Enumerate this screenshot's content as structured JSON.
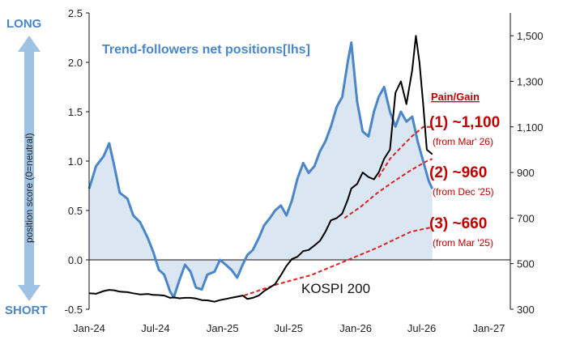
{
  "chart_data": {
    "type": "line",
    "left_axis": {
      "min": -0.5,
      "max": 2.5,
      "ticks": [
        "-0.5",
        "0.0",
        "0.5",
        "1.0",
        "1.5",
        "2.0",
        "2.5"
      ],
      "tick_values": [
        -0.5,
        0,
        0.5,
        1,
        1.5,
        2,
        2.5
      ]
    },
    "right_axis": {
      "min": 300,
      "max": 1600,
      "ticks": [
        "300",
        "500",
        "700",
        "900",
        "1,100",
        "1,300",
        "1,500"
      ],
      "tick_values": [
        300,
        500,
        700,
        900,
        1100,
        1300,
        1500
      ]
    },
    "x_axis": {
      "ticks": [
        "Jan-24",
        "Jul-24",
        "Jan-25",
        "Jul-25",
        "Jan-26",
        "Jul-26",
        "Jan-27"
      ],
      "tick_dates": [
        "2024-01",
        "2024-07",
        "2025-01",
        "2025-07",
        "2026-01",
        "2026-07",
        "2027-01"
      ]
    },
    "y_label_left": "position score (0=neutral)",
    "label_long": "LONG",
    "label_short": "SHORT",
    "legend_trend": "Trend-followers net positions[lhs]",
    "legend_kospi": "KOSPI 200",
    "annotation_title": "Pain/Gain",
    "annotations": [
      {
        "label": "(1) ~1,100",
        "note": "(from Mar' 26)"
      },
      {
        "label": "(2) ~960",
        "note": "(from Dec '25)"
      },
      {
        "label": "(3) ~660",
        "note": "(from Mar '25)"
      }
    ],
    "series": [
      {
        "name": "Trend-followers net positions[lhs]",
        "axis": "left",
        "color": "#4a86c8",
        "fill": "#dbe6f3",
        "points": [
          [
            "2024-01-01",
            0.72
          ],
          [
            "2024-01-20",
            0.95
          ],
          [
            "2024-02-10",
            1.05
          ],
          [
            "2024-02-25",
            1.18
          ],
          [
            "2024-03-10",
            0.95
          ],
          [
            "2024-03-25",
            0.68
          ],
          [
            "2024-04-15",
            0.62
          ],
          [
            "2024-05-01",
            0.45
          ],
          [
            "2024-05-20",
            0.38
          ],
          [
            "2024-06-10",
            0.22
          ],
          [
            "2024-06-25",
            0.08
          ],
          [
            "2024-07-10",
            -0.1
          ],
          [
            "2024-07-25",
            -0.15
          ],
          [
            "2024-08-10",
            -0.32
          ],
          [
            "2024-08-20",
            -0.38
          ],
          [
            "2024-09-05",
            -0.2
          ],
          [
            "2024-09-20",
            -0.05
          ],
          [
            "2024-10-05",
            -0.12
          ],
          [
            "2024-10-20",
            -0.28
          ],
          [
            "2024-11-05",
            -0.3
          ],
          [
            "2024-11-20",
            -0.15
          ],
          [
            "2024-12-10",
            -0.12
          ],
          [
            "2024-12-25",
            0.0
          ],
          [
            "2025-01-10",
            -0.05
          ],
          [
            "2025-01-25",
            -0.1
          ],
          [
            "2025-02-10",
            -0.18
          ],
          [
            "2025-02-25",
            -0.05
          ],
          [
            "2025-03-10",
            0.05
          ],
          [
            "2025-03-25",
            0.1
          ],
          [
            "2025-04-10",
            0.22
          ],
          [
            "2025-04-25",
            0.35
          ],
          [
            "2025-05-10",
            0.42
          ],
          [
            "2025-05-25",
            0.5
          ],
          [
            "2025-06-10",
            0.55
          ],
          [
            "2025-06-25",
            0.45
          ],
          [
            "2025-07-10",
            0.6
          ],
          [
            "2025-07-25",
            0.82
          ],
          [
            "2025-08-10",
            0.98
          ],
          [
            "2025-08-25",
            0.88
          ],
          [
            "2025-09-10",
            0.95
          ],
          [
            "2025-09-25",
            1.1
          ],
          [
            "2025-10-10",
            1.2
          ],
          [
            "2025-10-25",
            1.35
          ],
          [
            "2025-11-10",
            1.55
          ],
          [
            "2025-11-25",
            1.65
          ],
          [
            "2025-12-10",
            2.0
          ],
          [
            "2025-12-20",
            2.2
          ],
          [
            "2026-01-05",
            1.6
          ],
          [
            "2026-01-20",
            1.3
          ],
          [
            "2026-02-05",
            1.25
          ],
          [
            "2026-02-20",
            1.5
          ],
          [
            "2026-03-05",
            1.65
          ],
          [
            "2026-03-20",
            1.75
          ],
          [
            "2026-04-05",
            1.5
          ],
          [
            "2026-04-20",
            1.35
          ],
          [
            "2026-05-05",
            1.5
          ],
          [
            "2026-05-20",
            1.4
          ],
          [
            "2026-06-05",
            1.45
          ],
          [
            "2026-06-20",
            1.2
          ],
          [
            "2026-07-05",
            1.0
          ],
          [
            "2026-07-20",
            0.8
          ],
          [
            "2026-07-30",
            0.72
          ]
        ]
      },
      {
        "name": "KOSPI 200",
        "axis": "right",
        "color": "#000000",
        "points": [
          [
            "2024-01-01",
            370
          ],
          [
            "2024-01-20",
            368
          ],
          [
            "2024-02-10",
            380
          ],
          [
            "2024-02-25",
            385
          ],
          [
            "2024-03-10",
            383
          ],
          [
            "2024-03-25",
            377
          ],
          [
            "2024-04-15",
            375
          ],
          [
            "2024-05-01",
            370
          ],
          [
            "2024-05-20",
            365
          ],
          [
            "2024-06-10",
            367
          ],
          [
            "2024-06-25",
            363
          ],
          [
            "2024-07-10",
            362
          ],
          [
            "2024-07-25",
            360
          ],
          [
            "2024-08-10",
            350
          ],
          [
            "2024-08-20",
            352
          ],
          [
            "2024-09-05",
            348
          ],
          [
            "2024-09-20",
            350
          ],
          [
            "2024-10-05",
            350
          ],
          [
            "2024-10-20",
            347
          ],
          [
            "2024-11-05",
            340
          ],
          [
            "2024-11-20",
            339
          ],
          [
            "2024-12-10",
            333
          ],
          [
            "2024-12-25",
            340
          ],
          [
            "2025-01-10",
            345
          ],
          [
            "2025-01-25",
            350
          ],
          [
            "2025-02-10",
            355
          ],
          [
            "2025-02-25",
            360
          ],
          [
            "2025-03-10",
            345
          ],
          [
            "2025-03-25",
            350
          ],
          [
            "2025-04-10",
            360
          ],
          [
            "2025-04-25",
            380
          ],
          [
            "2025-05-10",
            395
          ],
          [
            "2025-05-25",
            410
          ],
          [
            "2025-06-10",
            450
          ],
          [
            "2025-06-25",
            490
          ],
          [
            "2025-07-10",
            520
          ],
          [
            "2025-07-25",
            530
          ],
          [
            "2025-08-10",
            555
          ],
          [
            "2025-08-25",
            560
          ],
          [
            "2025-09-10",
            580
          ],
          [
            "2025-09-25",
            600
          ],
          [
            "2025-10-10",
            640
          ],
          [
            "2025-10-25",
            690
          ],
          [
            "2025-11-10",
            700
          ],
          [
            "2025-11-25",
            720
          ],
          [
            "2025-12-10",
            780
          ],
          [
            "2025-12-20",
            830
          ],
          [
            "2026-01-05",
            850
          ],
          [
            "2026-01-20",
            900
          ],
          [
            "2026-02-05",
            880
          ],
          [
            "2026-02-20",
            870
          ],
          [
            "2026-03-05",
            900
          ],
          [
            "2026-03-20",
            960
          ],
          [
            "2026-04-05",
            1000
          ],
          [
            "2026-04-20",
            1250
          ],
          [
            "2026-05-05",
            1300
          ],
          [
            "2026-05-20",
            1200
          ],
          [
            "2026-06-05",
            1350
          ],
          [
            "2026-06-15",
            1500
          ],
          [
            "2026-06-25",
            1380
          ],
          [
            "2026-07-05",
            1200
          ],
          [
            "2026-07-15",
            1000
          ],
          [
            "2026-07-30",
            980
          ]
        ]
      },
      {
        "name": "(1) ~1,100",
        "axis": "right",
        "color": "#e02020",
        "dashed": true,
        "points": [
          [
            "2026-03-05",
            880
          ],
          [
            "2026-04-05",
            960
          ],
          [
            "2026-05-05",
            1010
          ],
          [
            "2026-06-05",
            1060
          ],
          [
            "2026-07-05",
            1100
          ],
          [
            "2026-07-30",
            1100
          ]
        ]
      },
      {
        "name": "(2) ~960",
        "axis": "right",
        "color": "#e02020",
        "dashed": true,
        "points": [
          [
            "2025-12-01",
            700
          ],
          [
            "2026-01-15",
            750
          ],
          [
            "2026-03-01",
            810
          ],
          [
            "2026-04-15",
            860
          ],
          [
            "2026-06-01",
            910
          ],
          [
            "2026-07-15",
            950
          ],
          [
            "2026-07-30",
            960
          ]
        ]
      },
      {
        "name": "(3) ~660",
        "axis": "right",
        "color": "#e02020",
        "dashed": true,
        "points": [
          [
            "2025-03-01",
            360
          ],
          [
            "2025-06-01",
            410
          ],
          [
            "2025-09-01",
            450
          ],
          [
            "2025-12-01",
            510
          ],
          [
            "2026-03-01",
            570
          ],
          [
            "2026-06-01",
            640
          ],
          [
            "2026-07-30",
            660
          ]
        ]
      }
    ]
  }
}
